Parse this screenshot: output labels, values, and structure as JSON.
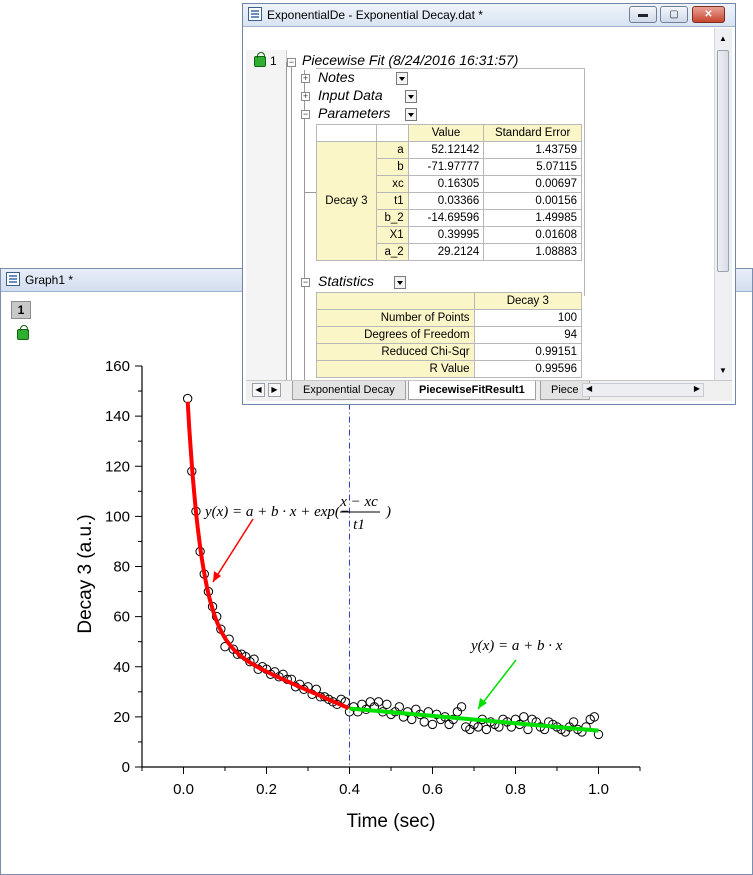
{
  "graph_window": {
    "title": "Graph1 *",
    "layer_label": "1"
  },
  "workbook_window": {
    "title": "ExponentialDe - Exponential Decay.dat *",
    "row_index": "1",
    "tree": {
      "root": "Piecewise Fit (8/24/2016 16:31:57)",
      "notes": "Notes",
      "input_data": "Input Data",
      "parameters": "Parameters",
      "statistics": "Statistics"
    },
    "parameters_table": {
      "col_value": "Value",
      "col_error": "Standard Error",
      "group": "Decay 3",
      "rows": [
        {
          "name": "a",
          "value": "52.12142",
          "error": "1.43759"
        },
        {
          "name": "b",
          "value": "-71.97777",
          "error": "5.07115"
        },
        {
          "name": "xc",
          "value": "0.16305",
          "error": "0.00697"
        },
        {
          "name": "t1",
          "value": "0.03366",
          "error": "0.00156"
        },
        {
          "name": "b_2",
          "value": "-14.69596",
          "error": "1.49985"
        },
        {
          "name": "X1",
          "value": "0.39995",
          "error": "0.01608"
        },
        {
          "name": "a_2",
          "value": "29.2124",
          "error": "1.08883"
        }
      ]
    },
    "statistics_table": {
      "col": "Decay 3",
      "rows": [
        {
          "name": "Number of Points",
          "value": "100"
        },
        {
          "name": "Degrees of Freedom",
          "value": "94"
        },
        {
          "name": "Reduced Chi-Sqr",
          "value": "0.99151"
        },
        {
          "name": "R Value",
          "value": "0.99596"
        }
      ]
    },
    "sheet_tabs": [
      "Exponential Decay",
      "PiecewiseFitResult1",
      "Piece"
    ]
  },
  "chart_data": {
    "type": "scatter",
    "xlabel": "Time (sec)",
    "ylabel": "Decay 3 (a.u.)",
    "xlim": [
      -0.1,
      1.1
    ],
    "ylim": [
      0,
      160
    ],
    "xticks": [
      "0.0",
      "0.2",
      "0.4",
      "0.6",
      "0.8",
      "1.0"
    ],
    "yticks": [
      "0",
      "20",
      "40",
      "60",
      "80",
      "100",
      "120",
      "140",
      "160"
    ],
    "breakpoint_x": 0.39995,
    "annotation_exp": {
      "lhs": "y(x) = a + b · x + exp(−",
      "num": "x − xc",
      "den": "t1",
      "close": ")"
    },
    "annotation_lin": "y(x) = a + b · x",
    "fit_params": {
      "a": 52.12142,
      "b": -71.97777,
      "xc": 0.16305,
      "t1": 0.03366,
      "b_2": -14.69596,
      "a_2": 29.2124
    },
    "points": [
      [
        0.01,
        147
      ],
      [
        0.02,
        118
      ],
      [
        0.03,
        102
      ],
      [
        0.04,
        86
      ],
      [
        0.05,
        77
      ],
      [
        0.06,
        70
      ],
      [
        0.07,
        64
      ],
      [
        0.08,
        60
      ],
      [
        0.09,
        55
      ],
      [
        0.1,
        48
      ],
      [
        0.11,
        51
      ],
      [
        0.12,
        47
      ],
      [
        0.13,
        45
      ],
      [
        0.14,
        45
      ],
      [
        0.15,
        44
      ],
      [
        0.16,
        42
      ],
      [
        0.17,
        43
      ],
      [
        0.18,
        39
      ],
      [
        0.19,
        40
      ],
      [
        0.2,
        39
      ],
      [
        0.21,
        37
      ],
      [
        0.22,
        38
      ],
      [
        0.23,
        36
      ],
      [
        0.24,
        37
      ],
      [
        0.25,
        35
      ],
      [
        0.26,
        35
      ],
      [
        0.27,
        32
      ],
      [
        0.28,
        33
      ],
      [
        0.29,
        31
      ],
      [
        0.3,
        32
      ],
      [
        0.31,
        29
      ],
      [
        0.32,
        31
      ],
      [
        0.33,
        28
      ],
      [
        0.34,
        28
      ],
      [
        0.35,
        27
      ],
      [
        0.36,
        26
      ],
      [
        0.37,
        25
      ],
      [
        0.38,
        27
      ],
      [
        0.39,
        26
      ],
      [
        0.4,
        22
      ],
      [
        0.41,
        24
      ],
      [
        0.42,
        22
      ],
      [
        0.43,
        25
      ],
      [
        0.44,
        23
      ],
      [
        0.45,
        26
      ],
      [
        0.46,
        24
      ],
      [
        0.47,
        26
      ],
      [
        0.48,
        22
      ],
      [
        0.49,
        25
      ],
      [
        0.5,
        21
      ],
      [
        0.51,
        22
      ],
      [
        0.52,
        24
      ],
      [
        0.53,
        20
      ],
      [
        0.54,
        22
      ],
      [
        0.55,
        19
      ],
      [
        0.56,
        23
      ],
      [
        0.57,
        21
      ],
      [
        0.58,
        18
      ],
      [
        0.59,
        22
      ],
      [
        0.6,
        17
      ],
      [
        0.61,
        21
      ],
      [
        0.62,
        19
      ],
      [
        0.63,
        20
      ],
      [
        0.64,
        17
      ],
      [
        0.65,
        19
      ],
      [
        0.66,
        22
      ],
      [
        0.67,
        24
      ],
      [
        0.68,
        16
      ],
      [
        0.69,
        15
      ],
      [
        0.7,
        17
      ],
      [
        0.71,
        16
      ],
      [
        0.72,
        19
      ],
      [
        0.73,
        15
      ],
      [
        0.74,
        18
      ],
      [
        0.75,
        17
      ],
      [
        0.76,
        16
      ],
      [
        0.77,
        19
      ],
      [
        0.78,
        18
      ],
      [
        0.79,
        16
      ],
      [
        0.8,
        19
      ],
      [
        0.81,
        17
      ],
      [
        0.82,
        20
      ],
      [
        0.83,
        15
      ],
      [
        0.84,
        19
      ],
      [
        0.85,
        18
      ],
      [
        0.86,
        16
      ],
      [
        0.87,
        15
      ],
      [
        0.88,
        18
      ],
      [
        0.89,
        17
      ],
      [
        0.9,
        16
      ],
      [
        0.91,
        15
      ],
      [
        0.92,
        14
      ],
      [
        0.93,
        16
      ],
      [
        0.94,
        18
      ],
      [
        0.95,
        15
      ],
      [
        0.96,
        14
      ],
      [
        0.97,
        16
      ],
      [
        0.98,
        19
      ],
      [
        0.99,
        20
      ],
      [
        1.0,
        13
      ]
    ]
  },
  "colors": {
    "exp_fit": "#ff0000",
    "lin_fit": "#00e000",
    "breakpoint": "#2f3fbf",
    "marker": "#000000"
  }
}
